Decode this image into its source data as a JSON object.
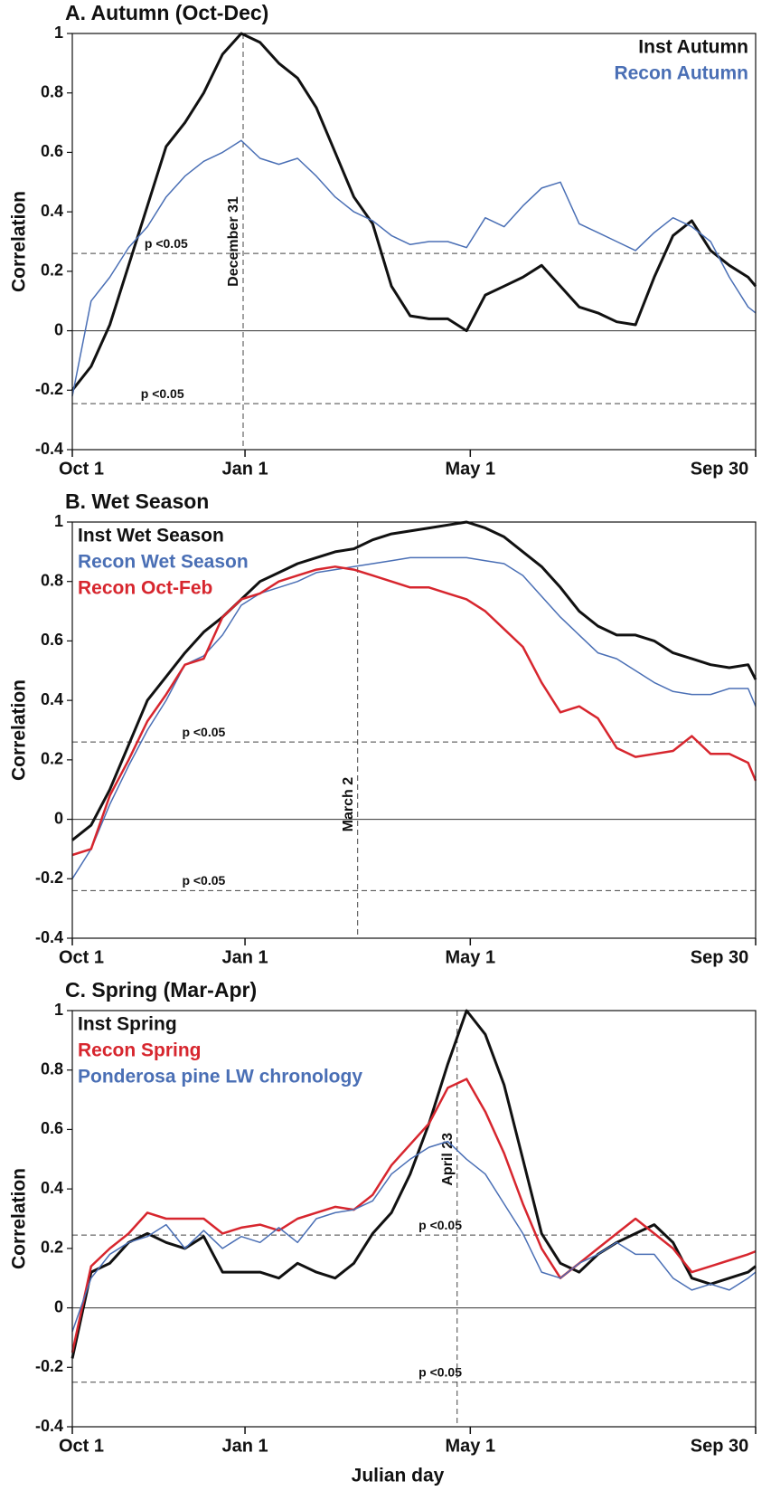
{
  "x_label": "Julian day",
  "chart_data": [
    {
      "type": "line",
      "title": "A. Autumn (Oct-Dec)",
      "y_label": "Correlation",
      "legend": "upper right",
      "xlim": [
        0,
        364
      ],
      "xticks": [
        {
          "value": 0,
          "label": "Oct 1"
        },
        {
          "value": 92,
          "label": "Jan 1"
        },
        {
          "value": 212,
          "label": "May 1"
        },
        {
          "value": 364,
          "label": "Sep 30"
        }
      ],
      "ylim": [
        -0.4,
        1
      ],
      "yticks": [
        1,
        0.8,
        0.6,
        0.4,
        0.2,
        0,
        -0.2,
        -0.4
      ],
      "zero_line": true,
      "hlines": [
        {
          "value": 0.26,
          "label": "p <0.05"
        },
        {
          "value": -0.245,
          "label": "p <0.05"
        }
      ],
      "vline": {
        "value": 91,
        "label": "December 31"
      },
      "x": [
        0,
        10,
        20,
        30,
        40,
        50,
        60,
        70,
        80,
        90,
        100,
        110,
        120,
        130,
        140,
        150,
        160,
        170,
        180,
        190,
        200,
        210,
        220,
        230,
        240,
        250,
        260,
        270,
        280,
        290,
        300,
        310,
        320,
        330,
        340,
        350,
        360,
        364
      ],
      "series": [
        {
          "name": "Inst Autumn",
          "color": "#111111",
          "line_width": 3,
          "values": [
            -0.2,
            -0.12,
            0.02,
            0.22,
            0.42,
            0.62,
            0.7,
            0.8,
            0.93,
            1.0,
            0.97,
            0.9,
            0.85,
            0.75,
            0.6,
            0.45,
            0.36,
            0.15,
            0.05,
            0.04,
            0.04,
            0.0,
            0.12,
            0.15,
            0.18,
            0.22,
            0.15,
            0.08,
            0.06,
            0.03,
            0.02,
            0.18,
            0.32,
            0.37,
            0.27,
            0.22,
            0.18,
            0.15
          ]
        },
        {
          "name": "Recon Autumn",
          "color": "#4a6fb5",
          "line_width": 1.5,
          "values": [
            -0.22,
            0.1,
            0.18,
            0.28,
            0.35,
            0.45,
            0.52,
            0.57,
            0.6,
            0.64,
            0.58,
            0.56,
            0.58,
            0.52,
            0.45,
            0.4,
            0.37,
            0.32,
            0.29,
            0.3,
            0.3,
            0.28,
            0.38,
            0.35,
            0.42,
            0.48,
            0.5,
            0.36,
            0.33,
            0.3,
            0.27,
            0.33,
            0.38,
            0.35,
            0.3,
            0.18,
            0.08,
            0.06
          ]
        }
      ]
    },
    {
      "type": "line",
      "title": "B. Wet Season",
      "y_label": "Correlation",
      "legend": "upper left",
      "xlim": [
        0,
        364
      ],
      "xticks": [
        {
          "value": 0,
          "label": "Oct 1"
        },
        {
          "value": 92,
          "label": "Jan 1"
        },
        {
          "value": 212,
          "label": "May 1"
        },
        {
          "value": 364,
          "label": "Sep 30"
        }
      ],
      "ylim": [
        -0.4,
        1
      ],
      "yticks": [
        1,
        0.8,
        0.6,
        0.4,
        0.2,
        0,
        -0.2,
        -0.4
      ],
      "zero_line": true,
      "hlines": [
        {
          "value": 0.26,
          "label": "p <0.05"
        },
        {
          "value": -0.24,
          "label": "p <0.05"
        }
      ],
      "vline": {
        "value": 152,
        "label": "March 2"
      },
      "x": [
        0,
        10,
        20,
        30,
        40,
        50,
        60,
        70,
        80,
        90,
        100,
        110,
        120,
        130,
        140,
        150,
        160,
        170,
        180,
        190,
        200,
        210,
        220,
        230,
        240,
        250,
        260,
        270,
        280,
        290,
        300,
        310,
        320,
        330,
        340,
        350,
        360,
        364
      ],
      "series": [
        {
          "name": "Inst Wet Season",
          "color": "#111111",
          "line_width": 3,
          "values": [
            -0.07,
            -0.02,
            0.1,
            0.25,
            0.4,
            0.48,
            0.56,
            0.63,
            0.68,
            0.74,
            0.8,
            0.83,
            0.86,
            0.88,
            0.9,
            0.91,
            0.94,
            0.96,
            0.97,
            0.98,
            0.99,
            1.0,
            0.98,
            0.95,
            0.9,
            0.85,
            0.78,
            0.7,
            0.65,
            0.62,
            0.62,
            0.6,
            0.56,
            0.54,
            0.52,
            0.51,
            0.52,
            0.47
          ]
        },
        {
          "name": "Recon Wet Season",
          "color": "#4a6fb5",
          "line_width": 1.5,
          "values": [
            -0.2,
            -0.1,
            0.05,
            0.18,
            0.3,
            0.4,
            0.52,
            0.55,
            0.62,
            0.72,
            0.76,
            0.78,
            0.8,
            0.83,
            0.84,
            0.85,
            0.86,
            0.87,
            0.88,
            0.88,
            0.88,
            0.88,
            0.87,
            0.86,
            0.82,
            0.75,
            0.68,
            0.62,
            0.56,
            0.54,
            0.5,
            0.46,
            0.43,
            0.42,
            0.42,
            0.44,
            0.44,
            0.38
          ]
        },
        {
          "name": "Recon Oct-Feb",
          "color": "#d7262e",
          "line_width": 2.5,
          "values": [
            -0.12,
            -0.1,
            0.08,
            0.2,
            0.33,
            0.42,
            0.52,
            0.54,
            0.68,
            0.74,
            0.76,
            0.8,
            0.82,
            0.84,
            0.85,
            0.84,
            0.82,
            0.8,
            0.78,
            0.78,
            0.76,
            0.74,
            0.7,
            0.64,
            0.58,
            0.46,
            0.36,
            0.38,
            0.34,
            0.24,
            0.21,
            0.22,
            0.23,
            0.28,
            0.22,
            0.22,
            0.19,
            0.13
          ]
        }
      ]
    },
    {
      "type": "line",
      "title": "C. Spring (Mar-Apr)",
      "y_label": "Correlation",
      "legend": "upper left",
      "xlim": [
        0,
        364
      ],
      "xticks": [
        {
          "value": 0,
          "label": "Oct 1"
        },
        {
          "value": 92,
          "label": "Jan 1"
        },
        {
          "value": 212,
          "label": "May 1"
        },
        {
          "value": 364,
          "label": "Sep 30"
        }
      ],
      "ylim": [
        -0.4,
        1
      ],
      "yticks": [
        1,
        0.8,
        0.6,
        0.4,
        0.2,
        0,
        -0.2,
        -0.4
      ],
      "zero_line": true,
      "hlines": [
        {
          "value": 0.245,
          "label": "p <0.05"
        },
        {
          "value": -0.25,
          "label": "p <0.05"
        }
      ],
      "vline": {
        "value": 205,
        "label": "April 23"
      },
      "x": [
        0,
        10,
        20,
        30,
        40,
        50,
        60,
        70,
        80,
        90,
        100,
        110,
        120,
        130,
        140,
        150,
        160,
        170,
        180,
        190,
        200,
        210,
        220,
        230,
        240,
        250,
        260,
        270,
        280,
        290,
        300,
        310,
        320,
        330,
        340,
        350,
        360,
        364
      ],
      "series": [
        {
          "name": "Inst Spring",
          "color": "#111111",
          "line_width": 3,
          "values": [
            -0.17,
            0.12,
            0.15,
            0.22,
            0.25,
            0.22,
            0.2,
            0.24,
            0.12,
            0.12,
            0.12,
            0.1,
            0.15,
            0.12,
            0.1,
            0.15,
            0.25,
            0.32,
            0.45,
            0.62,
            0.82,
            1.0,
            0.92,
            0.75,
            0.5,
            0.25,
            0.15,
            0.12,
            0.18,
            0.22,
            0.25,
            0.28,
            0.22,
            0.1,
            0.08,
            0.1,
            0.12,
            0.14
          ]
        },
        {
          "name": "Recon Spring",
          "color": "#d7262e",
          "line_width": 2.5,
          "values": [
            -0.15,
            0.14,
            0.2,
            0.25,
            0.32,
            0.3,
            0.3,
            0.3,
            0.25,
            0.27,
            0.28,
            0.26,
            0.3,
            0.32,
            0.34,
            0.33,
            0.38,
            0.48,
            0.55,
            0.62,
            0.74,
            0.77,
            0.66,
            0.52,
            0.35,
            0.2,
            0.1,
            0.15,
            0.2,
            0.25,
            0.3,
            0.25,
            0.2,
            0.12,
            0.14,
            0.16,
            0.18,
            0.19
          ]
        },
        {
          "name": "Ponderosa pine LW chronology",
          "color": "#4a6fb5",
          "line_width": 1.5,
          "values": [
            -0.08,
            0.1,
            0.18,
            0.22,
            0.24,
            0.28,
            0.2,
            0.26,
            0.2,
            0.24,
            0.22,
            0.27,
            0.22,
            0.3,
            0.32,
            0.33,
            0.36,
            0.45,
            0.5,
            0.54,
            0.56,
            0.5,
            0.45,
            0.35,
            0.25,
            0.12,
            0.1,
            0.15,
            0.18,
            0.22,
            0.18,
            0.18,
            0.1,
            0.06,
            0.08,
            0.06,
            0.1,
            0.12
          ]
        }
      ]
    }
  ]
}
